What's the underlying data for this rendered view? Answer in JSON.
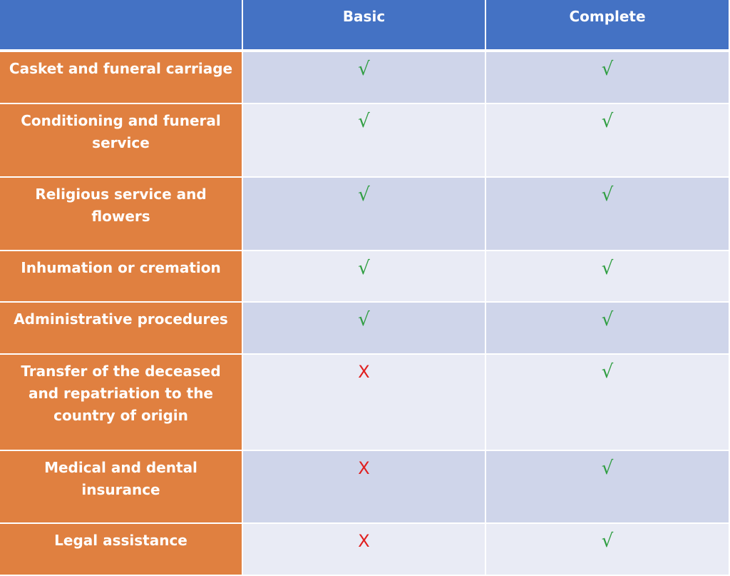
{
  "header": {
    "corner": "",
    "basic": "Basic",
    "complete": "Complete"
  },
  "rows": [
    {
      "label": "Casket and funeral carriage",
      "basic": "√",
      "complete": "√"
    },
    {
      "label": "Conditioning and funeral service",
      "basic": "√",
      "complete": "√"
    },
    {
      "label": "Religious service and flowers",
      "basic": "√",
      "complete": "√"
    },
    {
      "label": "Inhumation or cremation",
      "basic": "√",
      "complete": "√"
    },
    {
      "label": "Administrative procedures",
      "basic": "√",
      "complete": "√"
    },
    {
      "label": "Transfer of the deceased and repatriation to the country of origin",
      "basic": "X",
      "complete": "√"
    },
    {
      "label": "Medical and dental insurance",
      "basic": "X",
      "complete": "√"
    },
    {
      "label": "Legal assistance",
      "basic": "X",
      "complete": "√"
    }
  ],
  "colors": {
    "header": "#4472c4",
    "label": "#e08040",
    "row_odd": "#cfd5ea",
    "row_even": "#e9ebf5",
    "check": "#2f9e41",
    "cross": "#e02020"
  }
}
